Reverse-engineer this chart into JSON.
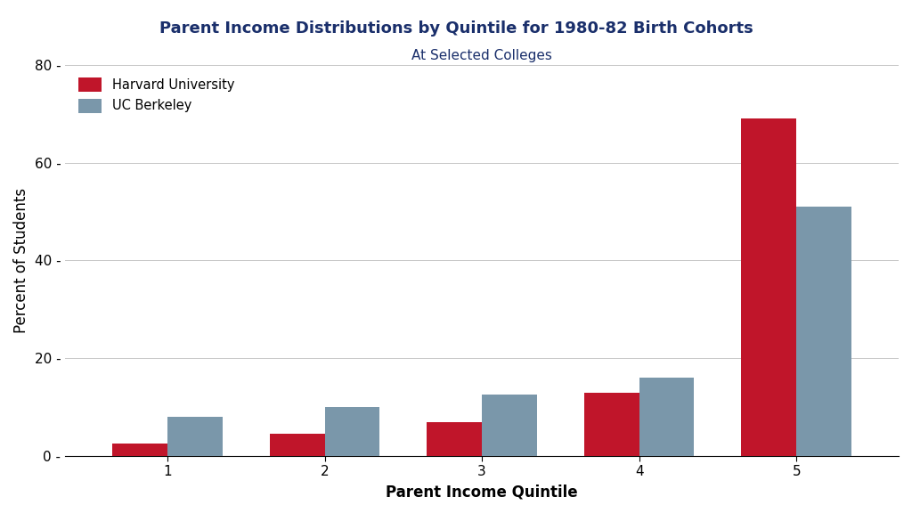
{
  "title": "Parent Income Distributions by Quintile for 1980-82 Birth Cohorts",
  "subtitle": "At Selected Colleges",
  "xlabel": "Parent Income Quintile",
  "ylabel": "Percent of Students",
  "quintiles": [
    1,
    2,
    3,
    4,
    5
  ],
  "harvard_values": [
    2.5,
    4.5,
    7.0,
    13.0,
    69.0
  ],
  "berkeley_values": [
    8.0,
    10.0,
    12.5,
    16.0,
    51.0
  ],
  "harvard_color": "#c0152a",
  "berkeley_color": "#7a97aa",
  "ylim": [
    0,
    80
  ],
  "yticks": [
    0,
    20,
    40,
    60,
    80
  ],
  "ytick_labels": [
    "0",
    "20",
    "40",
    "60",
    "80"
  ],
  "legend_labels": [
    "Harvard University",
    "UC Berkeley"
  ],
  "title_color": "#1a2f6b",
  "subtitle_color": "#1a2f6b",
  "title_fontsize": 13,
  "subtitle_fontsize": 11,
  "axis_label_fontsize": 12,
  "tick_fontsize": 11,
  "bar_width": 0.35,
  "background_color": "#ffffff",
  "grid_color": "#c8c8c8"
}
